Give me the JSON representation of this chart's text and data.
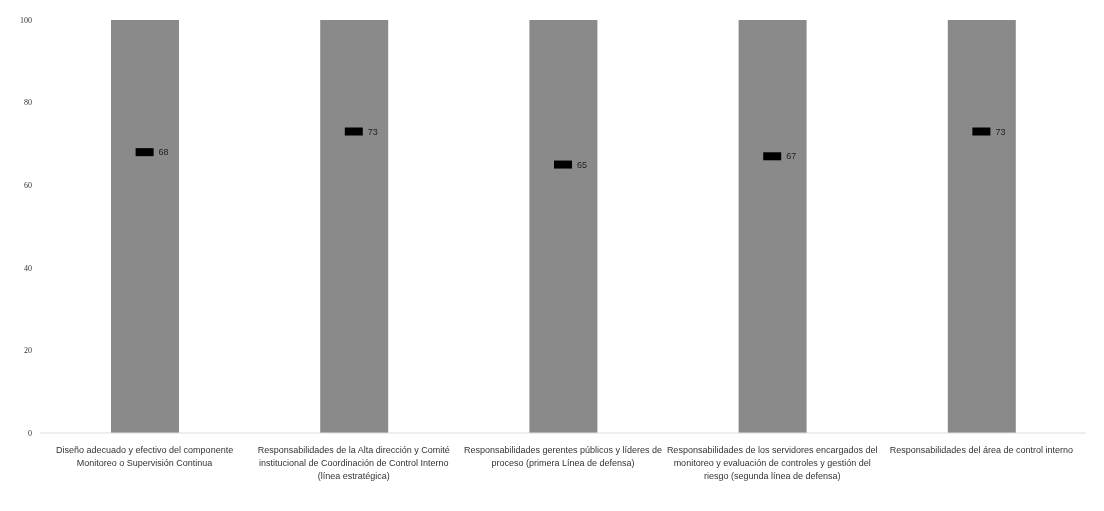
{
  "chart_data": {
    "type": "bar",
    "categories": [
      "Diseño adecuado y efectivo del componente Monitoreo o Supervisión Continua",
      "Responsabilidades de la Alta dirección y Comité institucional de Coordinación de Control Interno (línea estratégica)",
      "Responsabilidades gerentes públicos y líderes de proceso (primera Línea de defensa)",
      "Responsabilidades de los servidores encargados del monitoreo y evaluación de controles y gestión del riesgo (segunda línea de defensa)",
      "Responsabilidades del área de control interno"
    ],
    "series": [
      {
        "color": "#8a8a8a",
        "values": [
          100,
          100,
          100,
          100,
          100
        ]
      },
      {
        "type": "scatter",
        "color": "#000000",
        "x": [
          "Diseño adecuado y efectivo del componente Monitoreo o Supervisión Continua",
          "Responsabilidades de la Alta dirección y Comité institucional de Coordinación de Control Interno (línea estratégica)",
          "Responsabilidades gerentes públicos y líderes de proceso (primera Línea de defensa)",
          "Responsabilidades de los servidores encargados del monitoreo y evaluación de controles y gestión del riesgo (segunda línea de defensa)",
          "Responsabilidades del área de control interno"
        ],
        "values": [
          68,
          73,
          65,
          67,
          73
        ],
        "value_labels": [
          "68",
          "73",
          "65",
          "67",
          "73"
        ]
      }
    ],
    "marker": "square",
    "ylim": [
      0,
      100
    ],
    "yticks": [
      0,
      20,
      40,
      60,
      80,
      100
    ]
  }
}
